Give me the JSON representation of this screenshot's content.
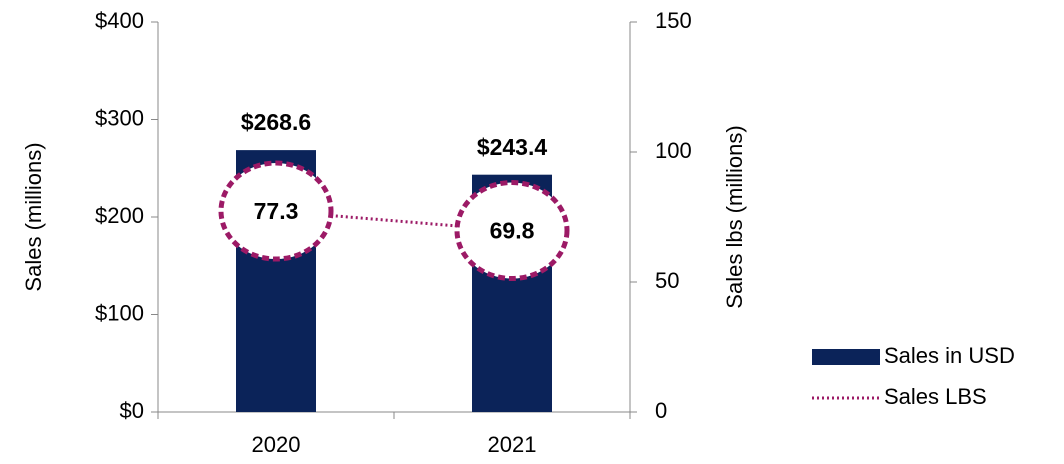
{
  "chart_data": {
    "type": "bar-line",
    "categories": [
      "2020",
      "2021"
    ],
    "series": [
      {
        "name": "Sales in USD",
        "type": "bar",
        "color": "#0b2359",
        "values": [
          268.6,
          243.4
        ],
        "value_labels": [
          "$268.6",
          "$243.4"
        ]
      },
      {
        "name": "Sales LBS",
        "type": "line",
        "color": "#9c1a66",
        "axis": "y2",
        "values": [
          77.3,
          69.8
        ]
      }
    ],
    "ylabel": "Sales (millions)",
    "y2label": "Sales lbs (millions)",
    "ylim": [
      0,
      400
    ],
    "yticks": [
      {
        "value": 0,
        "label": "$0"
      },
      {
        "value": 100,
        "label": "$100"
      },
      {
        "value": 200,
        "label": "$200"
      },
      {
        "value": 300,
        "label": "$300"
      },
      {
        "value": 400,
        "label": "$400"
      }
    ],
    "y2lim": [
      0,
      150
    ],
    "y2ticks": [
      0,
      50,
      100,
      150
    ],
    "legend": "right"
  }
}
